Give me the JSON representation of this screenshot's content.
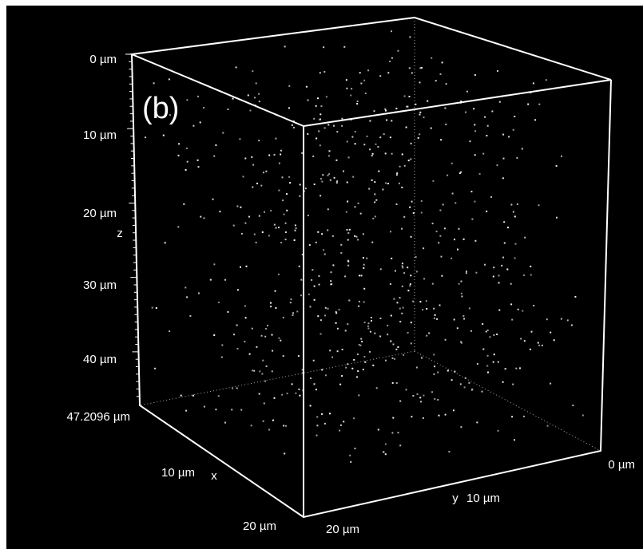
{
  "panel_label": "(b)",
  "z_axis": {
    "label": "z",
    "ticks": [
      "0 µm",
      "10 µm",
      "20 µm",
      "30 µm",
      "40 µm",
      "47.2096 µm"
    ]
  },
  "x_axis": {
    "label": "x",
    "ticks": [
      "10 µm",
      "20 µm"
    ]
  },
  "y_axis": {
    "label": "y",
    "ticks": [
      "0 µm",
      "10 µm",
      "20 µm"
    ]
  }
}
